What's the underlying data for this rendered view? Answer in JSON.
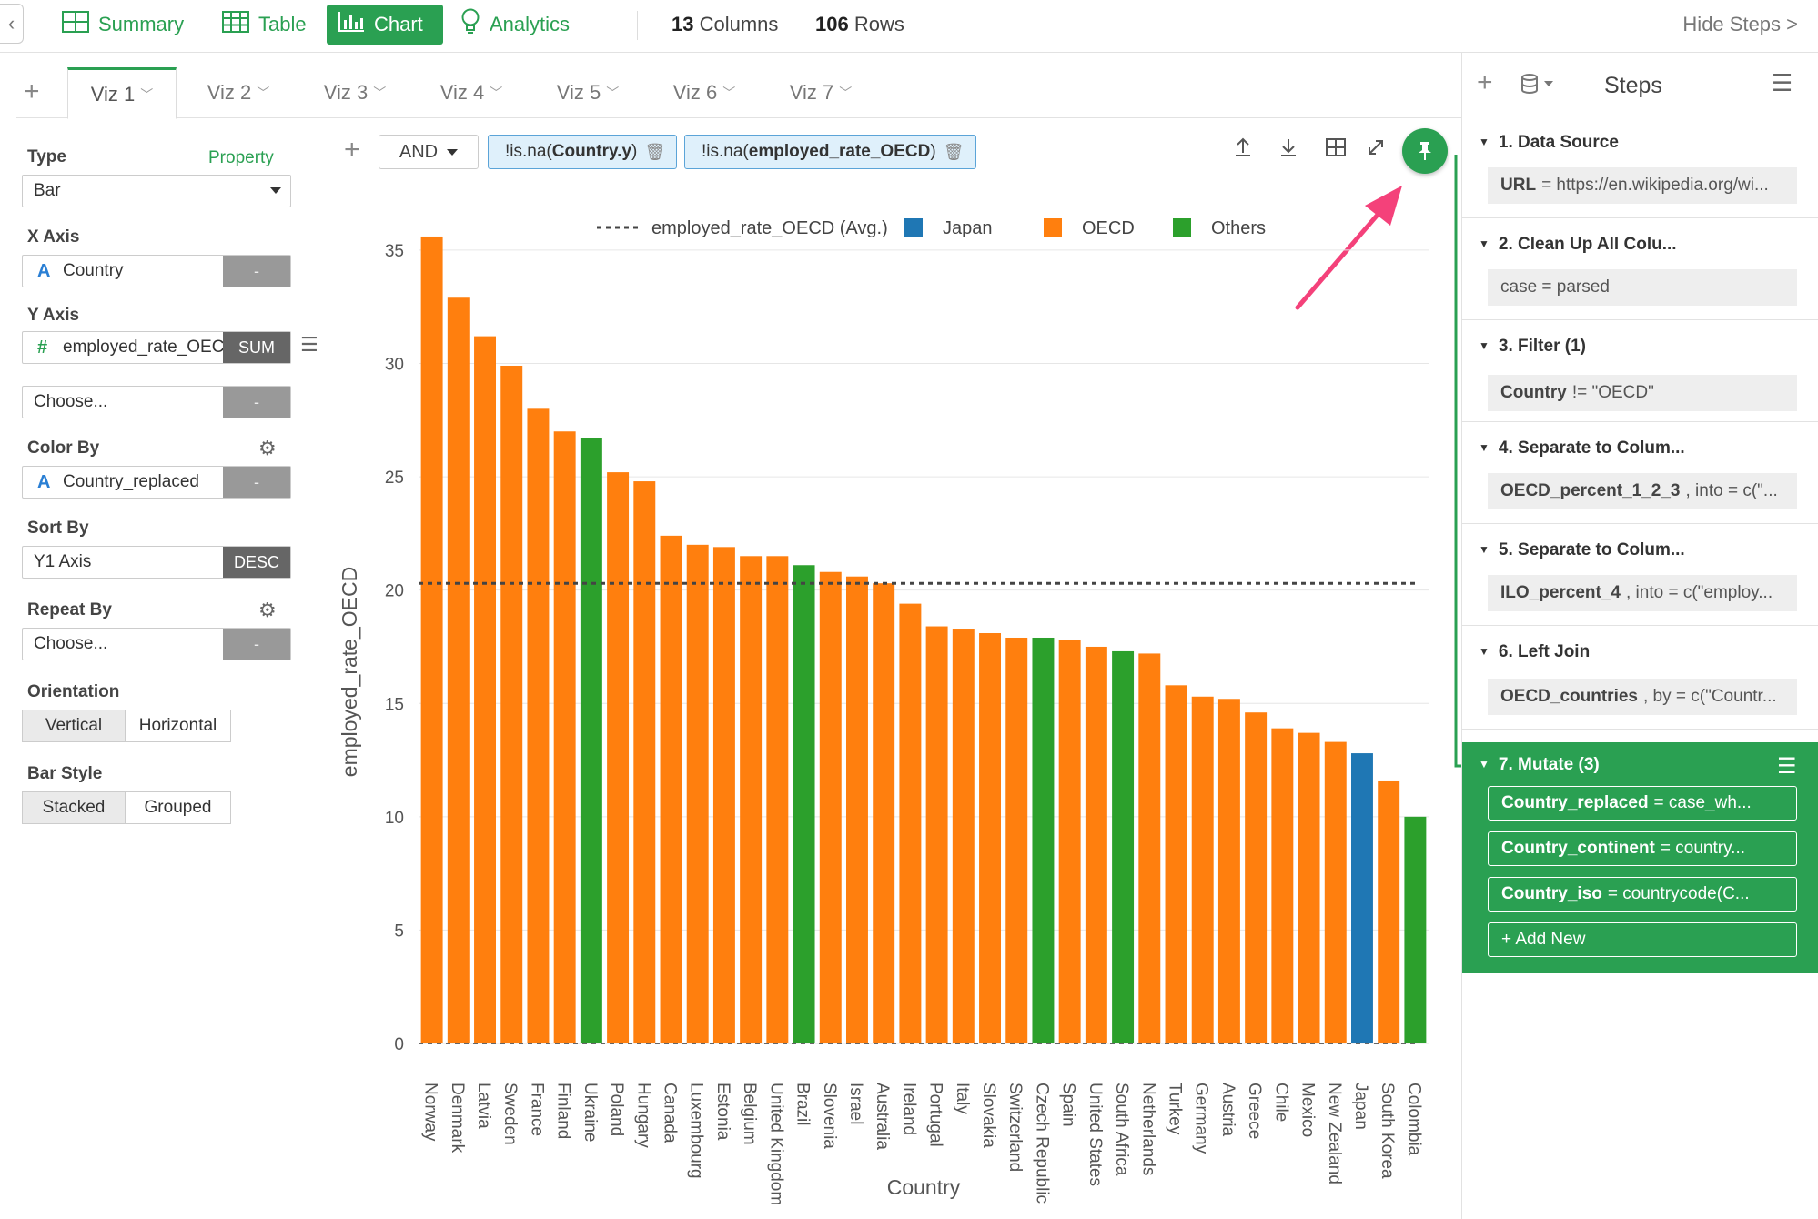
{
  "topbar": {
    "tabs": [
      {
        "label": "Summary",
        "icon": "summary-grid-icon"
      },
      {
        "label": "Table",
        "icon": "table-icon"
      },
      {
        "label": "Chart",
        "icon": "bar-chart-icon",
        "active": true
      },
      {
        "label": "Analytics",
        "icon": "lightbulb-icon"
      }
    ],
    "columns_count": "13",
    "columns_label": "Columns",
    "rows_count": "106",
    "rows_label": "Rows",
    "hide_steps": "Hide Steps >"
  },
  "viz_tabs": [
    "Viz 1",
    "Viz 2",
    "Viz 3",
    "Viz 4",
    "Viz 5",
    "Viz 6",
    "Viz 7"
  ],
  "config": {
    "type_label": "Type",
    "property_label": "Property",
    "type_value": "Bar",
    "x_axis_label": "X Axis",
    "x_axis_value": "Country",
    "x_axis_btn": "-",
    "y_axis_label": "Y Axis",
    "y_axis_value": "employed_rate_OECD",
    "y_axis_agg": "SUM",
    "y2_placeholder": "Choose...",
    "y2_btn": "-",
    "color_by_label": "Color By",
    "color_by_value": "Country_replaced",
    "color_by_btn": "-",
    "sort_by_label": "Sort By",
    "sort_by_value": "Y1 Axis",
    "sort_by_order": "DESC",
    "repeat_by_label": "Repeat By",
    "repeat_by_placeholder": "Choose...",
    "repeat_by_btn": "-",
    "orientation_label": "Orientation",
    "orientation_options": [
      "Vertical",
      "Horizontal"
    ],
    "bar_style_label": "Bar Style",
    "bar_style_options": [
      "Stacked",
      "Grouped"
    ]
  },
  "filters": {
    "operator": "AND",
    "chips": [
      {
        "prefix": "!is.na(",
        "field": "Country.y",
        "suffix": ")"
      },
      {
        "prefix": "!is.na(",
        "field": "employed_rate_OECD",
        "suffix": ")"
      }
    ]
  },
  "steps_panel": {
    "title": "Steps",
    "steps": [
      {
        "title": "1. Data Source",
        "key": "URL",
        "value": "= https://en.wikipedia.org/wi..."
      },
      {
        "title": "2. Clean Up All Colu...",
        "key": "",
        "value": "case = parsed"
      },
      {
        "title": "3. Filter (1)",
        "key": "Country",
        "value": "!= \"OECD\""
      },
      {
        "title": "4. Separate to Colum...",
        "key": "OECD_percent_1_2_3",
        "value": ", into = c(\"..."
      },
      {
        "title": "5. Separate to Colum...",
        "key": "ILO_percent_4",
        "value": ", into = c(\"employ..."
      },
      {
        "title": "6. Left Join",
        "key": "OECD_countries",
        "value": ", by = c(\"Countr..."
      }
    ],
    "active_step": {
      "title": "7. Mutate (3)",
      "rows": [
        {
          "key": "Country_replaced",
          "value": "= case_wh..."
        },
        {
          "key": "Country_continent",
          "value": "= country..."
        },
        {
          "key": "Country_iso",
          "value": "= countrycode(C..."
        }
      ],
      "add_new": "+ Add New"
    }
  },
  "chart_data": {
    "type": "bar",
    "xlabel": "Country",
    "ylabel": "employed_rate_OECD",
    "ylim": [
      0,
      36
    ],
    "yticks": [
      0,
      5,
      10,
      15,
      20,
      25,
      30,
      35
    ],
    "grid": true,
    "legend_position": "top",
    "legend": [
      {
        "name": "employed_rate_OECD (Avg.)",
        "style": "dashed-line",
        "color": "#444444"
      },
      {
        "name": "Japan",
        "color": "#1f77b4"
      },
      {
        "name": "OECD",
        "color": "#ff7f0e"
      },
      {
        "name": "Others",
        "color": "#2ca02c"
      }
    ],
    "average_line": 20.3,
    "categories": [
      "Norway",
      "Denmark",
      "Latvia",
      "Sweden",
      "France",
      "Finland",
      "Ukraine",
      "Poland",
      "Hungary",
      "Canada",
      "Luxembourg",
      "Estonia",
      "Belgium",
      "United Kingdom",
      "Brazil",
      "Slovenia",
      "Israel",
      "Australia",
      "Ireland",
      "Portugal",
      "Italy",
      "Slovakia",
      "Switzerland",
      "Czech Republic",
      "Spain",
      "United States",
      "South Africa",
      "Netherlands",
      "Turkey",
      "Germany",
      "Austria",
      "Greece",
      "Chile",
      "Mexico",
      "New Zealand",
      "Japan",
      "South Korea",
      "Colombia"
    ],
    "values": [
      35.6,
      32.9,
      31.2,
      29.9,
      28.0,
      27.0,
      26.7,
      25.2,
      24.8,
      22.4,
      22.0,
      21.9,
      21.5,
      21.5,
      21.1,
      20.8,
      20.6,
      20.3,
      19.4,
      18.4,
      18.3,
      18.1,
      17.9,
      17.9,
      17.8,
      17.5,
      17.3,
      17.2,
      15.8,
      15.3,
      15.2,
      14.6,
      13.9,
      13.7,
      13.3,
      12.8,
      11.6,
      10.0
    ],
    "groups": [
      "OECD",
      "OECD",
      "OECD",
      "OECD",
      "OECD",
      "OECD",
      "Others",
      "OECD",
      "OECD",
      "OECD",
      "OECD",
      "OECD",
      "OECD",
      "OECD",
      "Others",
      "OECD",
      "OECD",
      "OECD",
      "OECD",
      "OECD",
      "OECD",
      "OECD",
      "OECD",
      "Others",
      "OECD",
      "OECD",
      "Others",
      "OECD",
      "OECD",
      "OECD",
      "OECD",
      "OECD",
      "OECD",
      "OECD",
      "OECD",
      "Japan",
      "OECD",
      "Others"
    ],
    "colors": {
      "Japan": "#1f77b4",
      "OECD": "#ff7f0e",
      "Others": "#2ca02c"
    }
  }
}
